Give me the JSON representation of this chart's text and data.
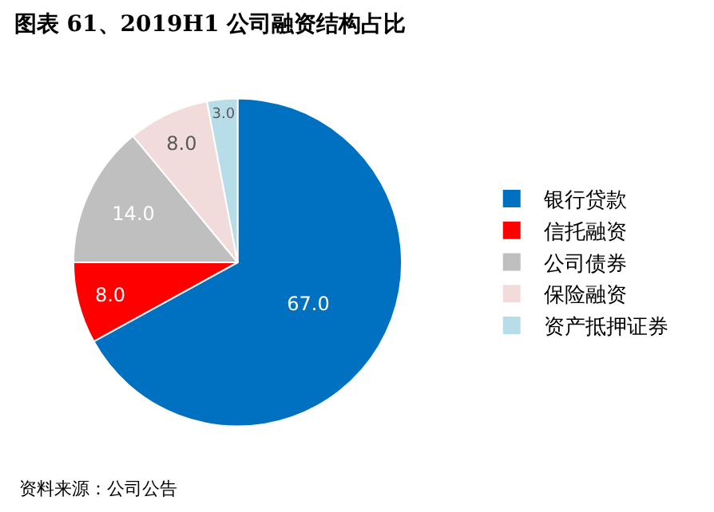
{
  "chart_data": {
    "type": "pie",
    "title": "图表 61、2019H1 公司融资结构占比",
    "categories": [
      "银行贷款",
      "信托融资",
      "公司债券",
      "保险融资",
      "资产抵押证券"
    ],
    "values": [
      67,
      8,
      14,
      8,
      3
    ],
    "value_labels": [
      "67.0",
      "8.0",
      "14.0",
      "8.0",
      "3.0"
    ],
    "colors": [
      "#0070c0",
      "#ff0000",
      "#bfbfbf",
      "#f2dcdb",
      "#b7dee8"
    ],
    "legend": "right",
    "annotations": [
      "资料来源：公司公告"
    ]
  }
}
